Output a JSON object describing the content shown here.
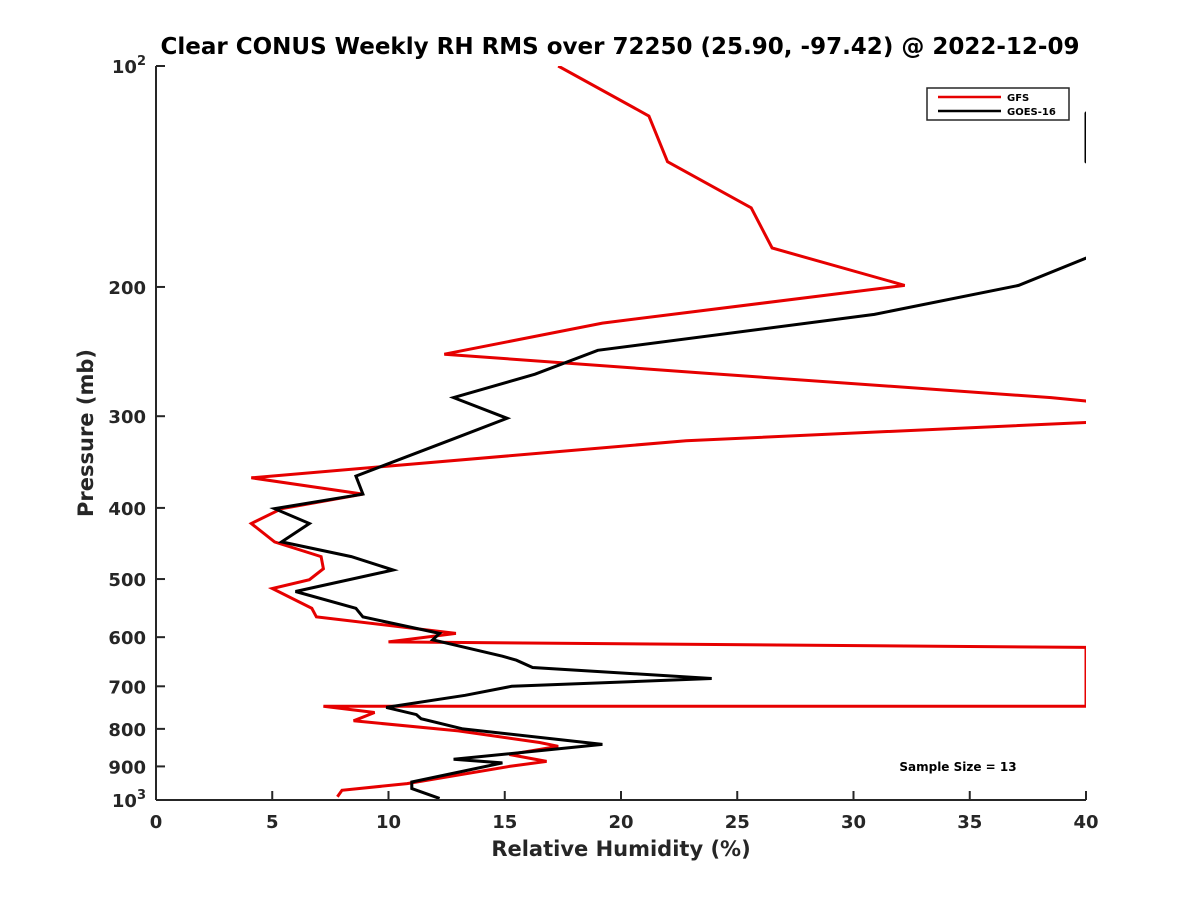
{
  "chart_data": {
    "type": "line",
    "title": "Clear CONUS Weekly RH RMS over 72250 (25.90, -97.42) @ 2022-12-09",
    "xlabel": "Relative Humidity (%)",
    "ylabel": "Pressure (mb)",
    "xlim": [
      0,
      40
    ],
    "ylim": [
      100,
      1000
    ],
    "y_scale": "log",
    "y_reversed": true,
    "x_ticks": [
      "0",
      "5",
      "10",
      "15",
      "20",
      "25",
      "30",
      "35",
      "40"
    ],
    "y_ticks": [
      {
        "value": 100,
        "label": "10",
        "sup": "2"
      },
      {
        "value": 200,
        "label": "200",
        "sup": ""
      },
      {
        "value": 300,
        "label": "300",
        "sup": ""
      },
      {
        "value": 400,
        "label": "400",
        "sup": ""
      },
      {
        "value": 500,
        "label": "500",
        "sup": ""
      },
      {
        "value": 600,
        "label": "600",
        "sup": ""
      },
      {
        "value": 700,
        "label": "700",
        "sup": ""
      },
      {
        "value": 800,
        "label": "800",
        "sup": ""
      },
      {
        "value": 900,
        "label": "900",
        "sup": ""
      },
      {
        "value": 1000,
        "label": "10",
        "sup": "3"
      }
    ],
    "legend_position": "top-right",
    "annotation": "Sample Size = 13",
    "series": [
      {
        "name": "GFS",
        "color": "#e60000",
        "points": [
          [
            17.3,
            100
          ],
          [
            21.2,
            117
          ],
          [
            22.0,
            135
          ],
          [
            25.6,
            156
          ],
          [
            26.5,
            177
          ],
          [
            32.2,
            199
          ],
          [
            19.2,
            224
          ],
          [
            12.4,
            247
          ],
          [
            23.5,
            262
          ],
          [
            38.5,
            283
          ],
          [
            40,
            286
          ],
          [
            41.5,
            305
          ],
          [
            40,
            306
          ],
          [
            22.8,
            324
          ],
          [
            4.1,
            364
          ],
          [
            8.9,
            383
          ],
          [
            5.4,
            401
          ],
          [
            4.1,
            420
          ],
          [
            5.1,
            445
          ],
          [
            7.1,
            466
          ],
          [
            7.2,
            484
          ],
          [
            6.6,
            501
          ],
          [
            5.0,
            515
          ],
          [
            6.7,
            548
          ],
          [
            6.9,
            563
          ],
          [
            12.9,
            593
          ],
          [
            10.0,
            609
          ],
          [
            41.0,
            620
          ],
          [
            40,
            623
          ],
          [
            40,
            745
          ],
          [
            7.2,
            745
          ],
          [
            9.4,
            760
          ],
          [
            8.5,
            780
          ],
          [
            13.0,
            805
          ],
          [
            16.5,
            835
          ],
          [
            17.3,
            845
          ],
          [
            15.2,
            867
          ],
          [
            16.8,
            886
          ],
          [
            15.2,
            900
          ],
          [
            10.8,
            950
          ],
          [
            8.0,
            970
          ],
          [
            7.8,
            990
          ]
        ]
      },
      {
        "name": "GOES-16",
        "color": "#000000",
        "segments": [
          [
            [
              41.0,
              107
            ],
            [
              40,
              116
            ],
            [
              40,
              135
            ],
            [
              40.5,
              139
            ]
          ],
          [
            [
              40.5,
              180
            ],
            [
              37.1,
              199
            ],
            [
              30.9,
              218
            ],
            [
              19.0,
              244
            ],
            [
              16.3,
              263
            ],
            [
              12.8,
              283
            ],
            [
              15.1,
              302
            ],
            [
              12.8,
              322
            ],
            [
              8.6,
              362
            ],
            [
              8.9,
              383
            ],
            [
              5.1,
              401
            ],
            [
              6.6,
              420
            ],
            [
              5.4,
              445
            ],
            [
              8.4,
              466
            ],
            [
              10.2,
              486
            ],
            [
              6.0,
              520
            ],
            [
              8.6,
              548
            ],
            [
              8.9,
              563
            ],
            [
              12.2,
              593
            ],
            [
              11.9,
              605
            ],
            [
              14.9,
              637
            ],
            [
              15.5,
              645
            ],
            [
              16.2,
              660
            ],
            [
              23.9,
              683
            ],
            [
              15.3,
              700
            ],
            [
              13.3,
              720
            ],
            [
              9.9,
              748
            ],
            [
              11.2,
              765
            ],
            [
              11.4,
              775
            ],
            [
              13.2,
              800
            ],
            [
              19.2,
              840
            ],
            [
              12.8,
              880
            ],
            [
              14.9,
              890
            ],
            [
              11.0,
              945
            ],
            [
              11.0,
              965
            ],
            [
              12.2,
              995
            ]
          ]
        ]
      }
    ]
  }
}
